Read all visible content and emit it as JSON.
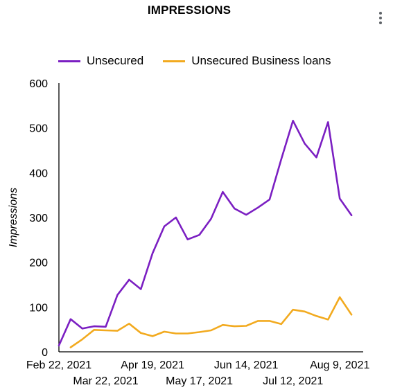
{
  "header": {
    "title": "IMPRESSIONS",
    "menu_icon": "more-vert-icon"
  },
  "colors": {
    "unsecured": "#7b1fc2",
    "business": "#f2aa1f",
    "axis": "#000000",
    "menu": "#5f6368"
  },
  "chart_data": {
    "type": "line",
    "title": "IMPRESSIONS",
    "xlabel": "",
    "ylabel": "Impressions",
    "ylim": [
      0,
      600
    ],
    "yticks": [
      0,
      100,
      200,
      300,
      400,
      500,
      600
    ],
    "grid": false,
    "legend_position": "top",
    "x": [
      "Feb 22, 2021",
      "Mar 1, 2021",
      "Mar 8, 2021",
      "Mar 15, 2021",
      "Mar 22, 2021",
      "Mar 29, 2021",
      "Apr 5, 2021",
      "Apr 12, 2021",
      "Apr 19, 2021",
      "Apr 26, 2021",
      "May 3, 2021",
      "May 10, 2021",
      "May 17, 2021",
      "May 24, 2021",
      "May 31, 2021",
      "Jun 7, 2021",
      "Jun 14, 2021",
      "Jun 21, 2021",
      "Jun 28, 2021",
      "Jul 5, 2021",
      "Jul 12, 2021",
      "Jul 19, 2021",
      "Jul 26, 2021",
      "Aug 2, 2021",
      "Aug 9, 2021",
      "Aug 16, 2021",
      "Aug 23, 2021"
    ],
    "xticks_top": [
      {
        "label": "Feb 22, 2021",
        "index": 0
      },
      {
        "label": "Apr 19, 2021",
        "index": 8
      },
      {
        "label": "Jun 14, 2021",
        "index": 16
      },
      {
        "label": "Aug 9, 2021",
        "index": 24
      }
    ],
    "xticks_bottom": [
      {
        "label": "Mar 22, 2021",
        "index": 4
      },
      {
        "label": "May 17, 2021",
        "index": 12
      },
      {
        "label": "Jul 12, 2021",
        "index": 20
      }
    ],
    "series": [
      {
        "name": "Unsecured",
        "color": "#7b1fc2",
        "values": [
          14,
          73,
          52,
          57,
          56,
          127,
          161,
          140,
          220,
          280,
          300,
          251,
          261,
          297,
          357,
          320,
          306,
          322,
          340,
          430,
          516,
          465,
          434,
          513,
          342,
          305,
          null
        ]
      },
      {
        "name": "Unsecured Business loans",
        "color": "#f2aa1f",
        "values": [
          null,
          10,
          28,
          49,
          48,
          47,
          63,
          42,
          35,
          45,
          41,
          41,
          44,
          48,
          60,
          57,
          58,
          69,
          69,
          62,
          94,
          90,
          80,
          72,
          122,
          83,
          null
        ]
      }
    ]
  }
}
